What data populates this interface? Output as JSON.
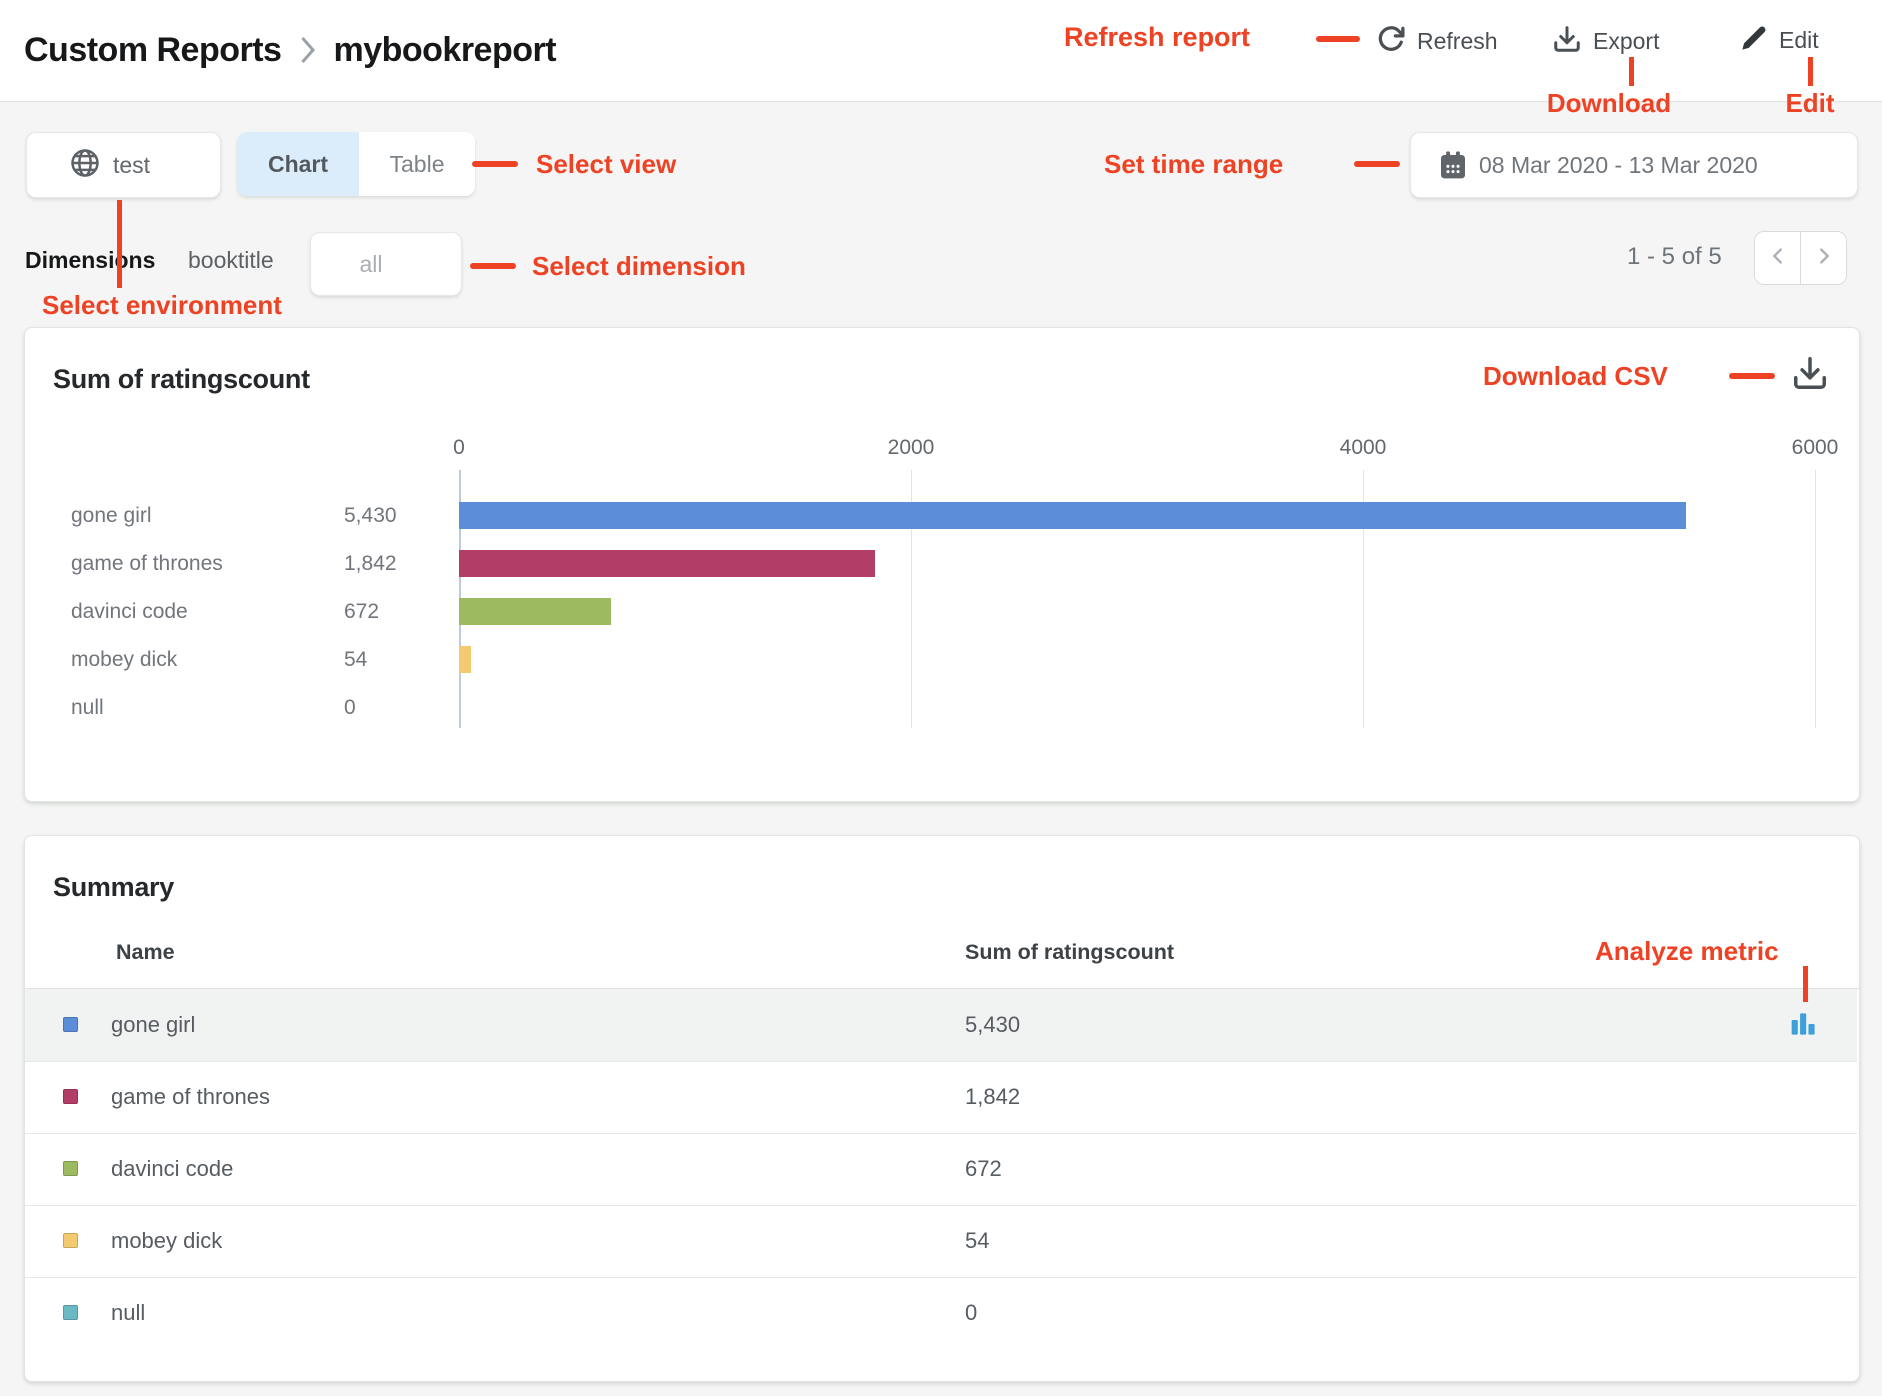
{
  "colors": {
    "annotation_red": "#ee4224",
    "tab_active_bg": "#dbecfa",
    "analyze_icon_blue": "#3f9fdb"
  },
  "header": {
    "breadcrumb": {
      "root": "Custom Reports",
      "current": "mybookreport"
    },
    "actions": {
      "refresh": "Refresh",
      "export": "Export",
      "edit": "Edit"
    }
  },
  "annotations": {
    "refresh_report": "Refresh report",
    "download": "Download",
    "edit": "Edit",
    "select_view": "Select view",
    "set_time_range": "Set time range",
    "select_dimension": "Select dimension",
    "select_environment": "Select environment",
    "download_csv": "Download CSV",
    "analyze_metric": "Analyze metric"
  },
  "toolbar": {
    "environment": "test",
    "view_tabs": [
      {
        "label": "Chart",
        "active": true
      },
      {
        "label": "Table",
        "active": false
      }
    ],
    "date_range": "08 Mar 2020 - 13 Mar 2020"
  },
  "dimensions_bar": {
    "label": "Dimensions",
    "dimension": "booktitle",
    "selected": "all",
    "pagination": "1 - 5 of 5"
  },
  "chart_card": {
    "title": "Sum of ratingscount"
  },
  "chart_data": {
    "type": "bar",
    "orientation": "horizontal",
    "title": "Sum of ratingscount",
    "categories": [
      "gone girl",
      "game of thrones",
      "davinci code",
      "mobey dick",
      "null"
    ],
    "values": [
      5430,
      1842,
      672,
      54,
      0
    ],
    "value_labels": [
      "5,430",
      "1,842",
      "672",
      "54",
      "0"
    ],
    "bar_colors": [
      "#5b8dd8",
      "#b23e68",
      "#9cba5f",
      "#f3ca6f",
      "#6cb9c6"
    ],
    "x_ticks": [
      0,
      2000,
      4000,
      6000
    ],
    "xlim": [
      0,
      6000
    ],
    "grid": true,
    "legend": false
  },
  "summary": {
    "title": "Summary",
    "columns": [
      "Name",
      "Sum of ratingscount"
    ],
    "rows": [
      {
        "name": "gone girl",
        "value": "5,430",
        "color": "#5b8dd8",
        "highlighted": true,
        "has_analyze_icon": true
      },
      {
        "name": "game of thrones",
        "value": "1,842",
        "color": "#b23e68",
        "highlighted": false,
        "has_analyze_icon": false
      },
      {
        "name": "davinci code",
        "value": "672",
        "color": "#9cba5f",
        "highlighted": false,
        "has_analyze_icon": false
      },
      {
        "name": "mobey dick",
        "value": "54",
        "color": "#f3ca6f",
        "highlighted": false,
        "has_analyze_icon": false
      },
      {
        "name": "null",
        "value": "0",
        "color": "#6cb9c6",
        "highlighted": false,
        "has_analyze_icon": false
      }
    ]
  }
}
